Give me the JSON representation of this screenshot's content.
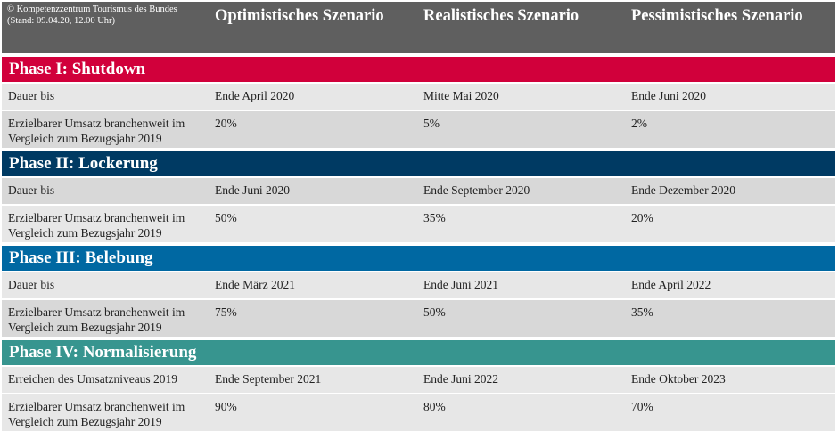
{
  "header": {
    "source": "© Kompetenzzentrum Tourismus des Bundes (Stand: 09.04.20, 12.00 Uhr)",
    "columns": [
      "Optimistisches Szenario",
      "Realistisches Szenario",
      "Pessimistisches Szenario"
    ]
  },
  "phases": [
    {
      "title": "Phase I: Shutdown",
      "rows": [
        [
          "Dauer bis",
          "Ende April 2020",
          "Mitte Mai 2020",
          "Ende Juni 2020"
        ],
        [
          "Erzielbarer Umsatz branchenweit im Vergleich zum Bezugsjahr 2019",
          "20%",
          "5%",
          "2%"
        ]
      ]
    },
    {
      "title": "Phase II: Lockerung",
      "rows": [
        [
          "Dauer bis",
          "Ende Juni 2020",
          "Ende September 2020",
          "Ende Dezember 2020"
        ],
        [
          "Erzielbarer Umsatz branchenweit im Vergleich zum Bezugsjahr 2019",
          "50%",
          "35%",
          "20%"
        ]
      ]
    },
    {
      "title": "Phase III: Belebung",
      "rows": [
        [
          "Dauer bis",
          "Ende März 2021",
          "Ende Juni 2021",
          "Ende April 2022"
        ],
        [
          "Erzielbarer Umsatz branchenweit im Vergleich zum Bezugsjahr 2019",
          "75%",
          "50%",
          "35%"
        ]
      ]
    },
    {
      "title": "Phase IV: Normalisierung",
      "rows": [
        [
          "Erreichen des Umsatzniveaus 2019",
          "Ende September 2021",
          "Ende Juni 2022",
          "Ende Oktober 2023"
        ],
        [
          "Erzielbarer Umsatz branchenweit im Vergleich zum Bezugsjahr 2019",
          "90%",
          "80%",
          "70%"
        ]
      ]
    }
  ]
}
